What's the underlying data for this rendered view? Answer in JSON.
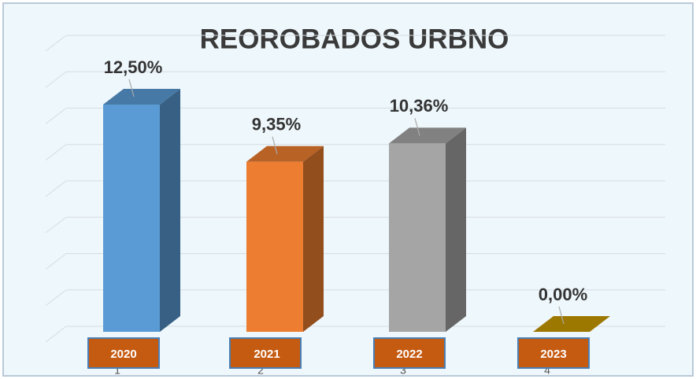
{
  "chart_data": {
    "type": "bar3d",
    "title": "REOROBADOS URBNO",
    "categories": [
      "1",
      "2",
      "3",
      "4"
    ],
    "annotations": [
      "2020",
      "2021",
      "2022",
      "2023"
    ],
    "values": [
      12.5,
      9.35,
      10.36,
      0
    ],
    "value_labels": [
      "12,50%",
      "9,35%",
      "10,36%",
      "0,00%"
    ],
    "colors": [
      "#5b9bd5",
      "#ed7d31",
      "#a5a5a5",
      "#c99a00"
    ],
    "ylim": [
      0,
      16
    ],
    "yticks": [
      0,
      2,
      4,
      6,
      8,
      10,
      12,
      14,
      16
    ],
    "grid": true
  }
}
